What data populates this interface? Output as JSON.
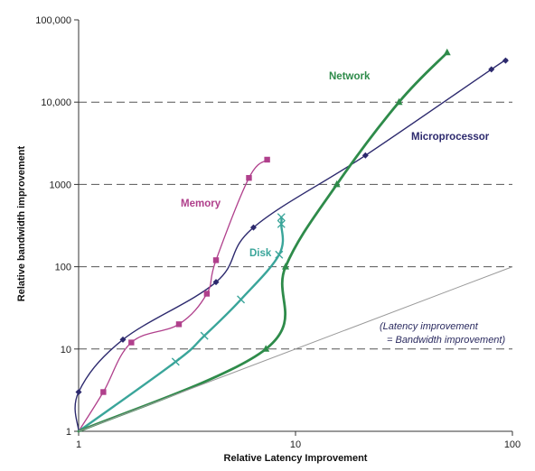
{
  "chart_data": {
    "type": "line",
    "xlabel": "Relative Latency Improvement",
    "ylabel": "Relative bandwidth improvement",
    "x_scale": "log",
    "y_scale": "log",
    "xlim": [
      1,
      100
    ],
    "ylim": [
      1,
      100000
    ],
    "grid": "horizontal dashed lines at 10, 100, 1000, 10000",
    "x_ticks": [
      "1",
      "10",
      "100"
    ],
    "y_ticks": [
      "1",
      "10",
      "100",
      "1000",
      "10,000",
      "100,000"
    ],
    "series": [
      {
        "name": "Microprocessor",
        "color": "#2d2a6e",
        "marker": "diamond",
        "points": [
          [
            1,
            1
          ],
          [
            1,
            3
          ],
          [
            1.6,
            13
          ],
          [
            4.3,
            65
          ],
          [
            6.4,
            300
          ],
          [
            21,
            2250
          ],
          [
            80,
            25000
          ],
          [
            93,
            32000
          ]
        ]
      },
      {
        "name": "Memory",
        "color": "#b0408c",
        "marker": "square",
        "points": [
          [
            1,
            1
          ],
          [
            1.3,
            3
          ],
          [
            1.75,
            12
          ],
          [
            2.9,
            20
          ],
          [
            3.9,
            47
          ],
          [
            4.3,
            120
          ],
          [
            6.1,
            1200
          ],
          [
            7.4,
            2000
          ]
        ]
      },
      {
        "name": "Disk",
        "color": "#3aa59a",
        "marker": "x",
        "points": [
          [
            1,
            1
          ],
          [
            2.8,
            7
          ],
          [
            3.8,
            14.5
          ],
          [
            5.6,
            40
          ],
          [
            8.4,
            140
          ],
          [
            8.6,
            330
          ],
          [
            8.6,
            400
          ]
        ]
      },
      {
        "name": "Network",
        "color": "#2e8b4a",
        "marker": "triangle",
        "points": [
          [
            1,
            1
          ],
          [
            7.3,
            10
          ],
          [
            9,
            100
          ],
          [
            15.5,
            1000
          ],
          [
            30,
            10000
          ],
          [
            50,
            40000
          ]
        ]
      },
      {
        "name": "(Latency improvement = Bandwidth improvement)",
        "color": "#999999",
        "marker": "none",
        "points": [
          [
            1,
            1
          ],
          [
            100,
            100
          ]
        ]
      }
    ],
    "annotations": [
      {
        "text": "Network",
        "color": "#2e8b4a"
      },
      {
        "text": "Microprocessor",
        "color": "#2d2a6e"
      },
      {
        "text": "Memory",
        "color": "#b0408c"
      },
      {
        "text": "Disk",
        "color": "#3aa59a"
      },
      {
        "text": "(Latency improvement",
        "color": "#2b2b60"
      },
      {
        "text": "= Bandwidth improvement)",
        "color": "#2b2b60"
      }
    ]
  }
}
